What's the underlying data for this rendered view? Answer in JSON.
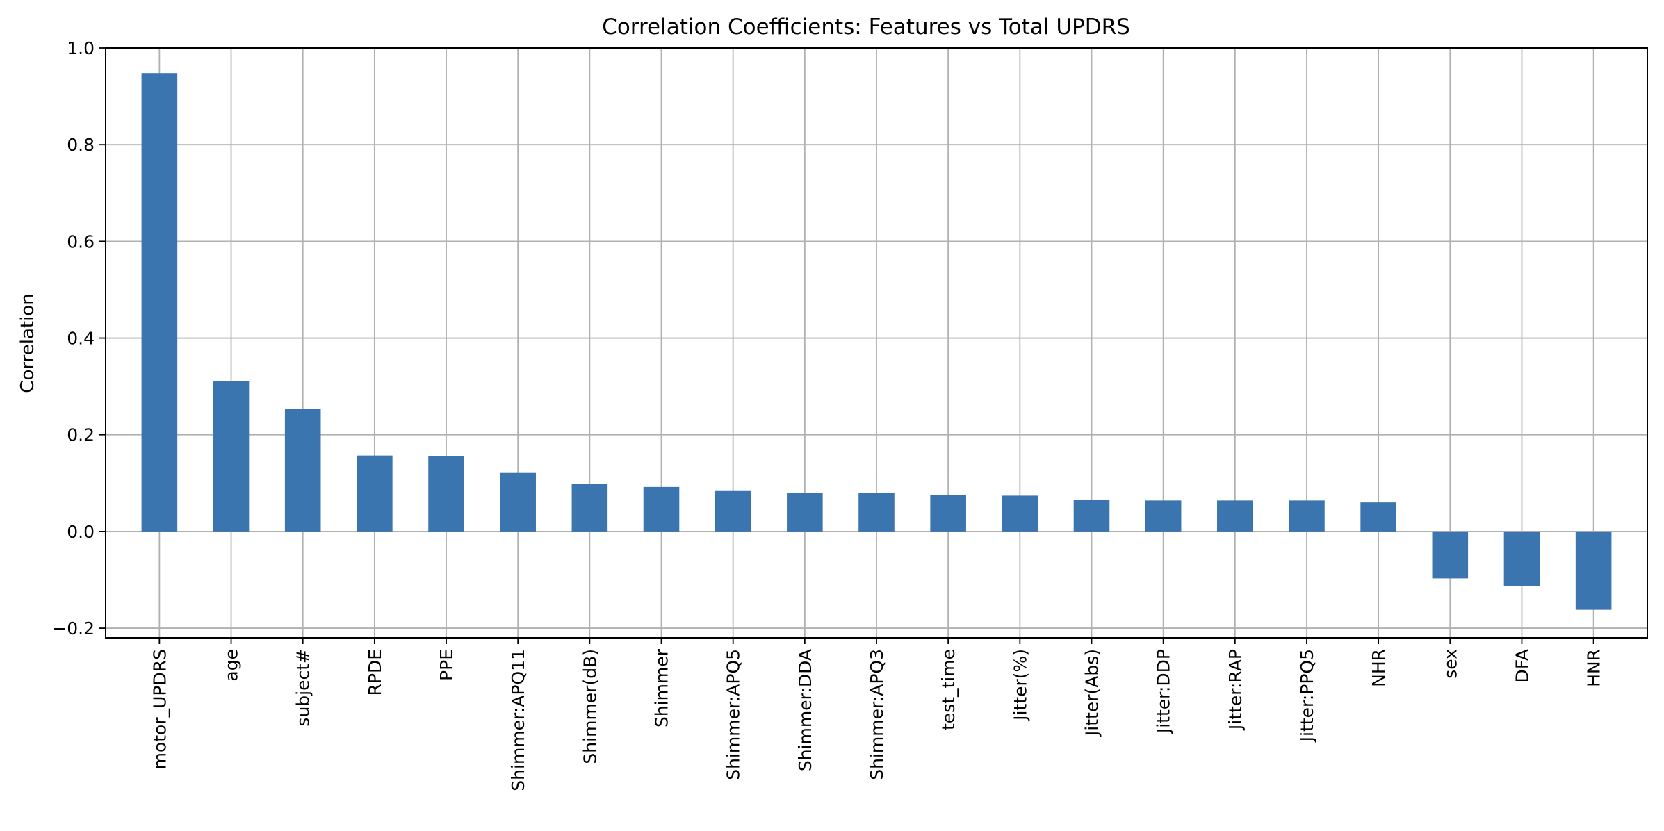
{
  "chart_data": {
    "type": "bar",
    "title": "Correlation Coefficients: Features vs Total UPDRS",
    "xlabel": "",
    "ylabel": "Correlation",
    "categories": [
      "motor_UPDRS",
      "age",
      "subject#",
      "RPDE",
      "PPE",
      "Shimmer:APQ11",
      "Shimmer(dB)",
      "Shimmer",
      "Shimmer:APQ5",
      "Shimmer:DDA",
      "Shimmer:APQ3",
      "test_time",
      "Jitter(%)",
      "Jitter(Abs)",
      "Jitter:DDP",
      "Jitter:RAP",
      "Jitter:PPQ5",
      "NHR",
      "sex",
      "DFA",
      "HNR"
    ],
    "values": [
      0.948,
      0.311,
      0.253,
      0.157,
      0.156,
      0.121,
      0.099,
      0.092,
      0.085,
      0.08,
      0.08,
      0.075,
      0.074,
      0.066,
      0.064,
      0.064,
      0.064,
      0.06,
      -0.097,
      -0.113,
      -0.162
    ],
    "ylim": [
      -0.22,
      1.0
    ],
    "yticks": [
      -0.2,
      0.0,
      0.2,
      0.4,
      0.6,
      0.8,
      1.0
    ],
    "ytick_labels": [
      "−0.2",
      "0.0",
      "0.2",
      "0.4",
      "0.6",
      "0.8",
      "1.0"
    ],
    "grid": true,
    "bar_color": "#3b75af"
  }
}
